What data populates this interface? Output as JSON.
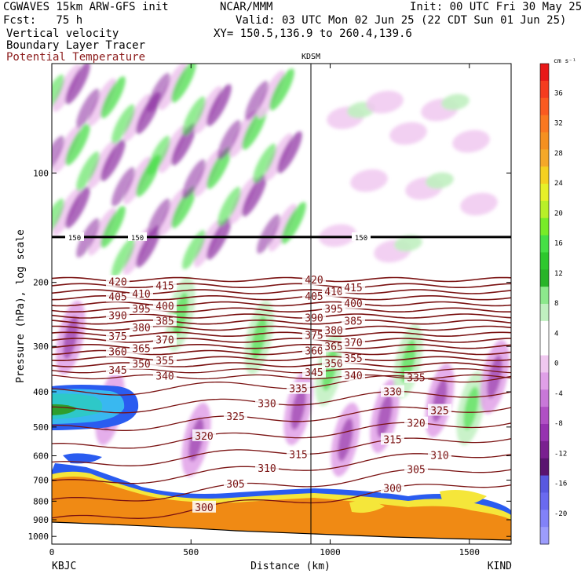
{
  "header": {
    "model": "CGWAVES 15km ARW-GFS init",
    "org": "NCAR/MMM",
    "init": "Init: 00 UTC Fri 30 May 25",
    "fcst": "Fcst:   75 h",
    "valid": "Valid: 03 UTC Mon 02 Jun 25 (22 CDT Sun 01 Jun 25)",
    "field1": "Vertical velocity",
    "xy": "XY= 150.5,136.9 to 260.4,139.6",
    "field2": "Boundary Layer Tracer",
    "field3": "Potential Temperature"
  },
  "station_mid": "KDSM",
  "station_left": "KBJC",
  "station_right": "KIND",
  "colors": {
    "theta": "#7a1212",
    "tropopause": "#000000",
    "blt_orange": "#f08a14",
    "blt_yellow": "#f5e63a",
    "blt_blue": "#2a5cf0",
    "ascent_green": "#3ddc3d",
    "descent_purple": "#8a2aa0"
  },
  "chart_data": {
    "type": "cross-section",
    "xlabel": "Distance (km)",
    "ylabel": "Pressure (hPa), log scale",
    "xlim": [
      0,
      1650
    ],
    "ylim": [
      1050,
      50
    ],
    "xticks": [
      "0",
      "500",
      "1000",
      "1500"
    ],
    "yticks": [
      "100",
      "200",
      "300",
      "400",
      "500",
      "600",
      "700",
      "800",
      "900",
      "1000"
    ],
    "colorbar": {
      "unit": "cm s⁻¹",
      "ticks": [
        "36",
        "32",
        "28",
        "24",
        "20",
        "16",
        "12",
        "8",
        "4",
        "0",
        "-4",
        "-8",
        "-12",
        "-16",
        "-20"
      ],
      "colors": [
        "#e81818",
        "#f53c1e",
        "#fa5a20",
        "#fa7820",
        "#f59020",
        "#f5a828",
        "#f5d020",
        "#e6f028",
        "#b8f028",
        "#78ec28",
        "#46e046",
        "#2ec82e",
        "#28b428",
        "#8ce88c",
        "#c0f0c0",
        "#ffffff",
        "#ffffff",
        "#f0c8f0",
        "#e0a0e8",
        "#c878d8",
        "#b050c4",
        "#9632b0",
        "#7a2090",
        "#5a1470",
        "#5858e0",
        "#6a6af0",
        "#8282f8",
        "#9c9cfc"
      ]
    },
    "isentropes": [
      {
        "theta": 300,
        "label": "300"
      },
      {
        "theta": 305,
        "label": "305"
      },
      {
        "theta": 310,
        "label": "310"
      },
      {
        "theta": 315,
        "label": "315"
      },
      {
        "theta": 320,
        "label": "320"
      },
      {
        "theta": 325,
        "label": "325"
      },
      {
        "theta": 330,
        "label": "330"
      },
      {
        "theta": 335,
        "label": "335"
      },
      {
        "theta": 340,
        "label": "340"
      },
      {
        "theta": 345,
        "label": "345"
      },
      {
        "theta": 350,
        "label": "350"
      },
      {
        "theta": 355,
        "label": "355"
      },
      {
        "theta": 360,
        "label": "360"
      },
      {
        "theta": 365,
        "label": "365"
      },
      {
        "theta": 370,
        "label": "370"
      },
      {
        "theta": 375,
        "label": "375"
      },
      {
        "theta": 380,
        "label": "380"
      },
      {
        "theta": 385,
        "label": "385"
      },
      {
        "theta": 390,
        "label": "390"
      },
      {
        "theta": 395,
        "label": "395"
      },
      {
        "theta": 400,
        "label": "400"
      },
      {
        "theta": 405,
        "label": "405"
      },
      {
        "theta": 410,
        "label": "410"
      },
      {
        "theta": 415,
        "label": "415"
      },
      {
        "theta": 420,
        "label": "420"
      }
    ],
    "tropopause_label": "150",
    "tropopause_hpa": 150,
    "kdsm_km": 940
  }
}
